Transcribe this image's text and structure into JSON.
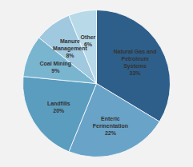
{
  "chart_data": {
    "type": "pie",
    "categories": [
      "Natural Gas and\nPetroleum\nSystems",
      "Enteric\nFermentation",
      "Landfills",
      "Coal Mining",
      "Manure\nManagement",
      "Other"
    ],
    "values": [
      33,
      22,
      20,
      9,
      8,
      6
    ],
    "value_labels": [
      "33%",
      "22%",
      "20%",
      "9%",
      "8%",
      "6%"
    ],
    "data_labels": true,
    "colors": [
      "#2e5f8a",
      "#6aa3c8",
      "#5b9dbf",
      "#7ab5d0",
      "#a0c8df",
      "#b8d9e8"
    ]
  }
}
